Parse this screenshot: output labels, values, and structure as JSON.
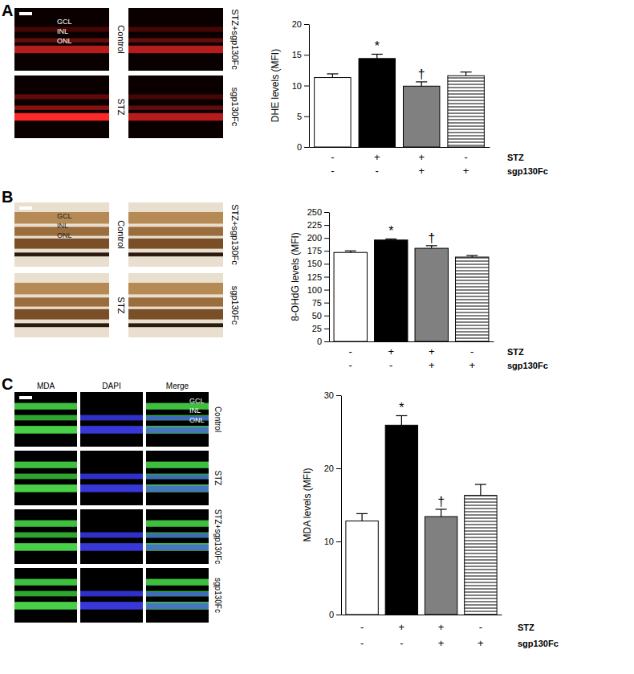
{
  "chart_data": [
    {
      "type": "bar",
      "y_label": "DHE levels (MFI)",
      "categories": [
        null,
        null,
        null,
        null
      ],
      "values": [
        11.3,
        14.4,
        9.9,
        11.6
      ],
      "errors": [
        0.6,
        0.7,
        0.7,
        0.6
      ],
      "colors": [
        "#ffffff",
        "#000000",
        "#808080",
        "#ffffff"
      ],
      "ylim": [
        0,
        20
      ],
      "yticks": [
        0,
        5,
        10,
        15,
        20
      ],
      "annotations": [
        {
          "index": 1,
          "text": "*"
        },
        {
          "index": 2,
          "text": "†"
        }
      ],
      "treatments": [
        {
          "name": "STZ",
          "signs": [
            "-",
            "+",
            "+",
            "-"
          ]
        },
        {
          "name": "sgp130Fc",
          "signs": [
            "-",
            "-",
            "+",
            "+"
          ]
        }
      ]
    },
    {
      "type": "bar",
      "y_label": "8-OHdG levels (MFI)",
      "categories": [
        null,
        null,
        null,
        null
      ],
      "values": [
        172,
        196,
        180,
        163
      ],
      "errors": [
        3,
        2,
        5,
        3
      ],
      "colors": [
        "#ffffff",
        "#000000",
        "#808080",
        "#ffffff"
      ],
      "ylim": [
        0,
        250
      ],
      "yticks": [
        0,
        25,
        50,
        75,
        100,
        125,
        150,
        175,
        200,
        225,
        250
      ],
      "annotations": [
        {
          "index": 1,
          "text": "*"
        },
        {
          "index": 2,
          "text": "†"
        }
      ],
      "treatments": [
        {
          "name": "STZ",
          "signs": [
            "-",
            "+",
            "+",
            "-"
          ]
        },
        {
          "name": "sgp130Fc",
          "signs": [
            "-",
            "-",
            "+",
            "+"
          ]
        }
      ]
    },
    {
      "type": "bar",
      "y_label": "MDA levels (MFI)",
      "categories": [
        null,
        null,
        null,
        null
      ],
      "values": [
        12.8,
        25.9,
        13.4,
        16.3
      ],
      "errors": [
        1.0,
        1.3,
        1.0,
        1.5
      ],
      "colors": [
        "#ffffff",
        "#000000",
        "#808080",
        "#ffffff"
      ],
      "ylim": [
        0,
        30
      ],
      "yticks": [
        0,
        10,
        20,
        30
      ],
      "annotations": [
        {
          "index": 1,
          "text": "*"
        },
        {
          "index": 2,
          "text": "†"
        }
      ],
      "treatments": [
        {
          "name": "STZ",
          "signs": [
            "-",
            "+",
            "+",
            "-"
          ]
        },
        {
          "name": "sgp130Fc",
          "signs": [
            "-",
            "-",
            "+",
            "+"
          ]
        }
      ]
    }
  ],
  "figure": {
    "panels": [
      {
        "label": "A",
        "image_labels": [
          "Control",
          "STZ+sgp130Fc",
          "STZ",
          "sgp130Fc"
        ],
        "layer_labels": [
          "GCL",
          "INL",
          "ONL"
        ]
      },
      {
        "label": "B",
        "image_labels": [
          "Control",
          "STZ+sgp130Fc",
          "STZ",
          "sgp130Fc"
        ],
        "layer_labels": [
          "GCL",
          "INL",
          "ONL"
        ]
      },
      {
        "label": "C",
        "channel_labels": [
          "MDA",
          "DAPI",
          "Merge"
        ],
        "image_labels": [
          "Control",
          "STZ",
          "STZ+sgp130Fc",
          "sgp130Fc"
        ],
        "layer_labels": [
          "GCL",
          "INL",
          "ONL"
        ]
      }
    ]
  }
}
